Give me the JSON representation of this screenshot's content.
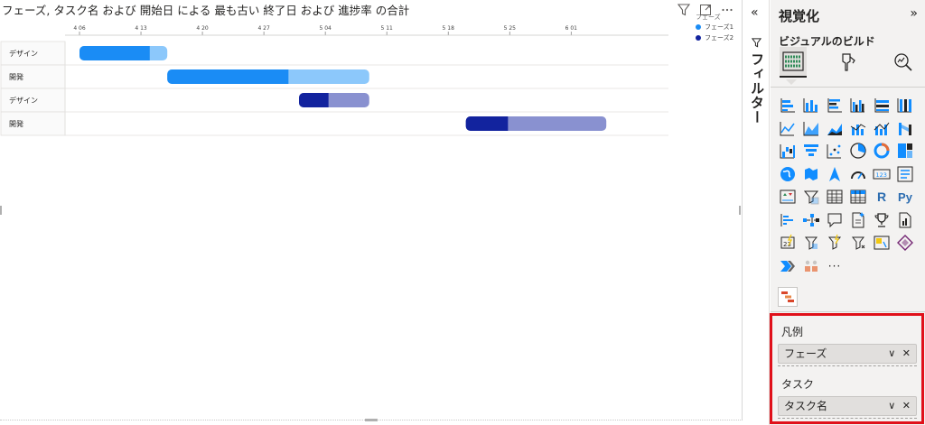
{
  "chart": {
    "title": "フェーズ, タスク名 および 開始日 による 最も古い 終了日 および 進捗率 の合計",
    "legend_title": "フェーズ",
    "header_icons": [
      "filter-icon",
      "focus-mode-icon",
      "more-options-icon"
    ],
    "colors": {
      "phase1_done": "#1a8cf5",
      "phase1_remaining": "#8cc8fb",
      "phase2_done": "#12239e",
      "phase2_remaining": "#8991d0",
      "grid": "#e1dfdd"
    }
  },
  "chart_data": {
    "type": "gantt",
    "title": "フェーズ, タスク名 および 開始日 による 最も古い 終了日 および 進捗率 の合計",
    "x_ticks": [
      "4 06",
      "4 13",
      "4 20",
      "4 27",
      "5 04",
      "5 11",
      "5 18",
      "5 25",
      "6 01"
    ],
    "x_start_day": 0,
    "legend": [
      {
        "name": "フェーズ1",
        "color": "#1a8cf5"
      },
      {
        "name": "フェーズ2",
        "color": "#12239e"
      }
    ],
    "tasks": [
      {
        "label": "デザイン",
        "phase": "フェーズ1",
        "start": "4 06",
        "end": "4 16",
        "progress": 0.8
      },
      {
        "label": "開発",
        "phase": "フェーズ1",
        "start": "4 16",
        "end": "5 09",
        "progress": 0.6
      },
      {
        "label": "デザイン",
        "phase": "フェーズ2",
        "start": "5 01",
        "end": "5 09",
        "progress": 0.42
      },
      {
        "label": "開発",
        "phase": "フェーズ2",
        "start": "5 20",
        "end": "6 05",
        "progress": 0.3
      }
    ]
  },
  "filter_pane": {
    "label": "フィルター",
    "collapse_glyph": "«"
  },
  "viz_pane": {
    "title": "視覚化",
    "expand_glyph": "»",
    "subtitle": "ビジュアルのビルド",
    "more_glyph": "···",
    "r_label": "R",
    "py_label": "Py",
    "num_label": "123",
    "wells": [
      {
        "label": "凡例",
        "value": "フェーズ"
      },
      {
        "label": "タスク",
        "value": "タスク名"
      }
    ],
    "well_ctrl": "∨ ✕"
  }
}
